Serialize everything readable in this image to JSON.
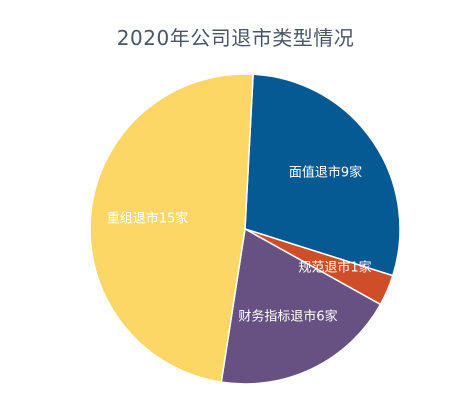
{
  "chart_data": {
    "type": "pie",
    "title": "2020年公司退市类型情况",
    "slices": [
      {
        "name": "面值退市9家",
        "value": 9,
        "color": "#065a94"
      },
      {
        "name": "规范退市1家",
        "value": 1,
        "color": "#cf4e29"
      },
      {
        "name": "财务指标退市6家",
        "value": 6,
        "color": "#665182"
      },
      {
        "name": "重组退市15家",
        "value": 15,
        "color": "#fdd766"
      }
    ],
    "start_angle_deg": 3,
    "legend": "none"
  }
}
